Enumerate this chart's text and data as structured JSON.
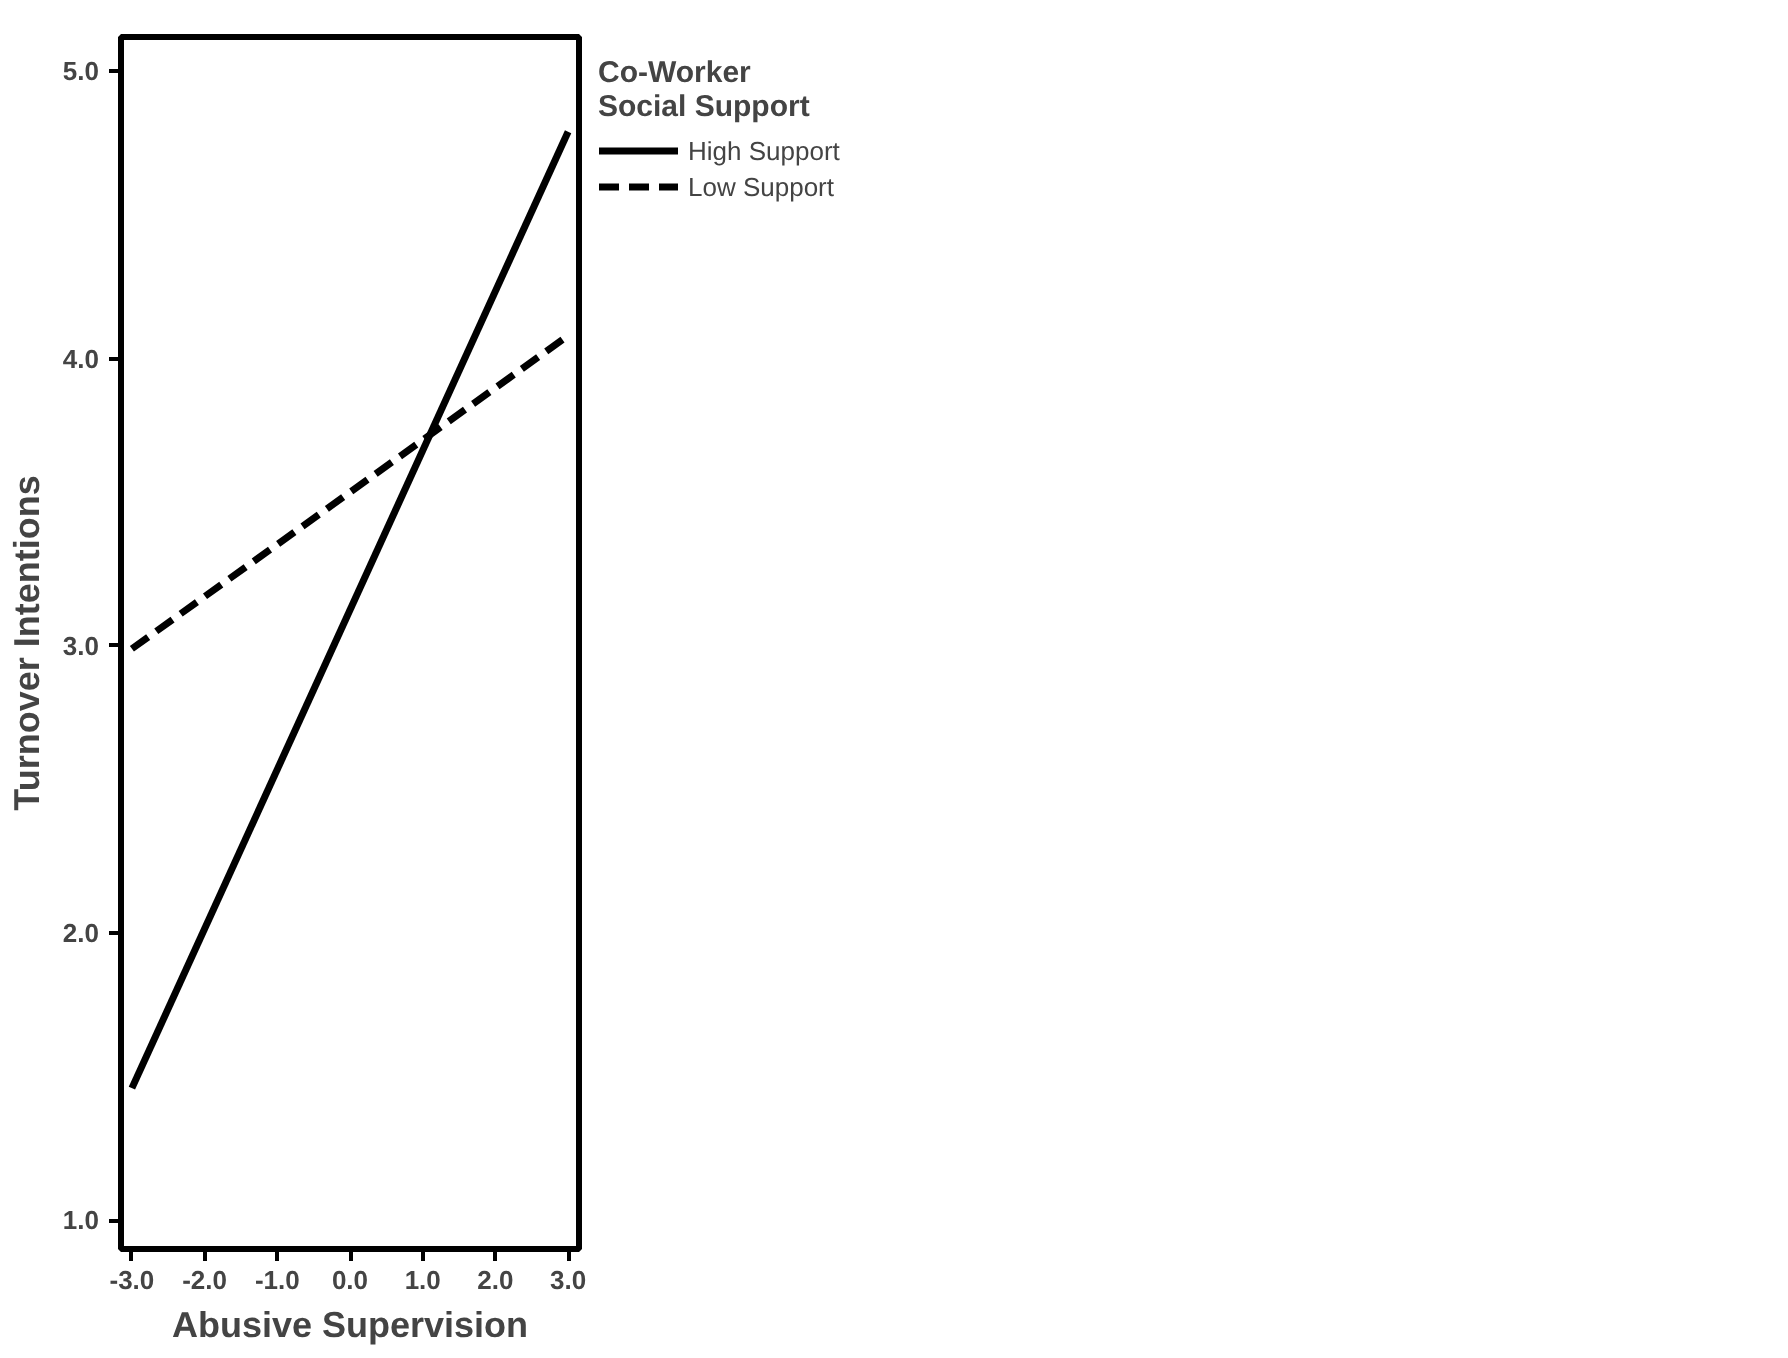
{
  "chart_data": {
    "type": "line",
    "xlabel": "Abusive Supervision",
    "ylabel": "Turnover Intentions",
    "legend_title": "Co-Worker\nSocial Support",
    "x": [
      -3.0,
      3.0
    ],
    "series": [
      {
        "name": "High Support",
        "color": "#000000",
        "values": [
          1.46,
          4.79
        ],
        "line_style": "solid"
      },
      {
        "name": "Low Support",
        "color": "#000000",
        "values": [
          2.99,
          4.08
        ],
        "line_style": "dashed"
      }
    ],
    "xlim": [
      -3.15,
      3.15
    ],
    "ylim": [
      0.9,
      5.12
    ],
    "xticks": [
      {
        "value": -3,
        "label": "-3.0"
      },
      {
        "value": -2,
        "label": "-2.0"
      },
      {
        "value": -1,
        "label": "-1.0"
      },
      {
        "value": 0,
        "label": "0.0"
      },
      {
        "value": 1,
        "label": "1.0"
      },
      {
        "value": 2,
        "label": "2.0"
      },
      {
        "value": 3,
        "label": "3.0"
      }
    ],
    "yticks": [
      {
        "value": 1,
        "label": "1.0"
      },
      {
        "value": 2,
        "label": "2.0"
      },
      {
        "value": 3,
        "label": "3.0"
      },
      {
        "value": 4,
        "label": "4.0"
      },
      {
        "value": 5,
        "label": "5.0"
      }
    ],
    "grid": false,
    "legend": "top right",
    "marker": "none"
  }
}
